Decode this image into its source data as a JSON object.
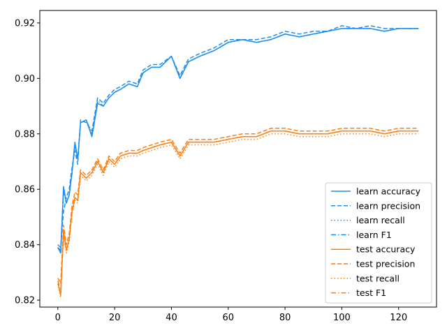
{
  "chart_data": {
    "type": "line",
    "title": "",
    "xlabel": "",
    "ylabel": "",
    "xlim": [
      -6.35,
      133.35
    ],
    "ylim": [
      0.8175,
      0.9245
    ],
    "xticks": [
      0,
      20,
      40,
      60,
      80,
      100,
      120
    ],
    "yticks": [
      0.82,
      0.84,
      0.86,
      0.88,
      0.9,
      0.92
    ],
    "yticks_labels": [
      "0.82",
      "0.84",
      "0.86",
      "0.88",
      "0.90",
      "0.92"
    ],
    "grid": false,
    "legend_position": "lower-right",
    "colors": {
      "learn": "#1f8ef1",
      "test": "#ff7f0e"
    },
    "x": [
      0,
      1,
      2,
      3,
      4,
      5,
      6,
      7,
      8,
      10,
      12,
      14,
      16,
      18,
      20,
      22,
      25,
      28,
      30,
      33,
      36,
      40,
      43,
      46,
      50,
      55,
      60,
      65,
      70,
      75,
      80,
      85,
      90,
      95,
      100,
      105,
      110,
      115,
      120,
      125,
      127
    ],
    "series": [
      {
        "name": "learn accuracy",
        "group": "learn",
        "dash": "solid",
        "values": [
          0.839,
          0.837,
          0.861,
          0.855,
          0.858,
          0.866,
          0.877,
          0.871,
          0.884,
          0.885,
          0.879,
          0.891,
          0.89,
          0.893,
          0.895,
          0.896,
          0.898,
          0.897,
          0.902,
          0.904,
          0.904,
          0.908,
          0.9,
          0.906,
          0.908,
          0.91,
          0.913,
          0.914,
          0.913,
          0.914,
          0.916,
          0.915,
          0.916,
          0.917,
          0.918,
          0.918,
          0.918,
          0.917,
          0.918,
          0.918,
          0.918
        ]
      },
      {
        "name": "learn precision",
        "group": "learn",
        "dash": "dashed",
        "values": [
          0.84,
          0.839,
          0.852,
          0.857,
          0.86,
          0.868,
          0.874,
          0.869,
          0.885,
          0.884,
          0.881,
          0.893,
          0.891,
          0.894,
          0.896,
          0.897,
          0.899,
          0.898,
          0.903,
          0.905,
          0.905,
          0.908,
          0.901,
          0.907,
          0.909,
          0.911,
          0.914,
          0.914,
          0.914,
          0.915,
          0.917,
          0.916,
          0.917,
          0.917,
          0.919,
          0.918,
          0.919,
          0.918,
          0.918,
          0.918,
          0.918
        ]
      },
      {
        "name": "learn recall",
        "group": "learn",
        "dash": "dotted",
        "values": [
          0.839,
          0.837,
          0.86,
          0.855,
          0.858,
          0.866,
          0.876,
          0.871,
          0.884,
          0.885,
          0.879,
          0.891,
          0.89,
          0.893,
          0.895,
          0.896,
          0.898,
          0.897,
          0.902,
          0.904,
          0.904,
          0.908,
          0.9,
          0.906,
          0.908,
          0.91,
          0.913,
          0.914,
          0.913,
          0.914,
          0.916,
          0.915,
          0.916,
          0.917,
          0.918,
          0.918,
          0.918,
          0.917,
          0.918,
          0.918,
          0.918
        ]
      },
      {
        "name": "learn F1",
        "group": "learn",
        "dash": "dashdot",
        "values": [
          0.839,
          0.838,
          0.859,
          0.855,
          0.858,
          0.866,
          0.876,
          0.871,
          0.884,
          0.885,
          0.88,
          0.892,
          0.89,
          0.893,
          0.895,
          0.896,
          0.898,
          0.897,
          0.902,
          0.904,
          0.904,
          0.908,
          0.9,
          0.906,
          0.908,
          0.91,
          0.913,
          0.914,
          0.913,
          0.914,
          0.916,
          0.915,
          0.916,
          0.917,
          0.918,
          0.918,
          0.918,
          0.917,
          0.918,
          0.918,
          0.918
        ]
      },
      {
        "name": "test accuracy",
        "group": "test",
        "dash": "solid",
        "values": [
          0.826,
          0.822,
          0.845,
          0.838,
          0.842,
          0.852,
          0.857,
          0.856,
          0.866,
          0.864,
          0.866,
          0.87,
          0.866,
          0.871,
          0.869,
          0.872,
          0.873,
          0.873,
          0.874,
          0.875,
          0.876,
          0.877,
          0.872,
          0.877,
          0.877,
          0.877,
          0.878,
          0.879,
          0.879,
          0.881,
          0.881,
          0.88,
          0.88,
          0.88,
          0.881,
          0.881,
          0.881,
          0.88,
          0.881,
          0.881,
          0.881
        ]
      },
      {
        "name": "test precision",
        "group": "test",
        "dash": "dashed",
        "values": [
          0.828,
          0.826,
          0.847,
          0.84,
          0.844,
          0.854,
          0.859,
          0.858,
          0.867,
          0.865,
          0.867,
          0.871,
          0.867,
          0.872,
          0.87,
          0.873,
          0.874,
          0.874,
          0.875,
          0.876,
          0.877,
          0.878,
          0.873,
          0.878,
          0.878,
          0.878,
          0.879,
          0.88,
          0.88,
          0.882,
          0.882,
          0.881,
          0.881,
          0.881,
          0.882,
          0.882,
          0.882,
          0.881,
          0.882,
          0.882,
          0.882
        ]
      },
      {
        "name": "test recall",
        "group": "test",
        "dash": "dotted",
        "values": [
          0.826,
          0.821,
          0.844,
          0.837,
          0.841,
          0.851,
          0.856,
          0.855,
          0.865,
          0.863,
          0.865,
          0.869,
          0.865,
          0.87,
          0.868,
          0.871,
          0.872,
          0.872,
          0.873,
          0.874,
          0.875,
          0.876,
          0.871,
          0.876,
          0.876,
          0.876,
          0.877,
          0.878,
          0.878,
          0.88,
          0.88,
          0.879,
          0.879,
          0.879,
          0.88,
          0.88,
          0.88,
          0.879,
          0.88,
          0.88,
          0.88
        ]
      },
      {
        "name": "test F1",
        "group": "test",
        "dash": "dashdot",
        "values": [
          0.827,
          0.823,
          0.845,
          0.838,
          0.842,
          0.852,
          0.857,
          0.856,
          0.866,
          0.864,
          0.866,
          0.87,
          0.866,
          0.871,
          0.869,
          0.872,
          0.873,
          0.873,
          0.874,
          0.875,
          0.876,
          0.877,
          0.872,
          0.877,
          0.877,
          0.877,
          0.878,
          0.879,
          0.879,
          0.881,
          0.881,
          0.88,
          0.88,
          0.88,
          0.881,
          0.881,
          0.881,
          0.88,
          0.881,
          0.881,
          0.881
        ]
      }
    ]
  }
}
